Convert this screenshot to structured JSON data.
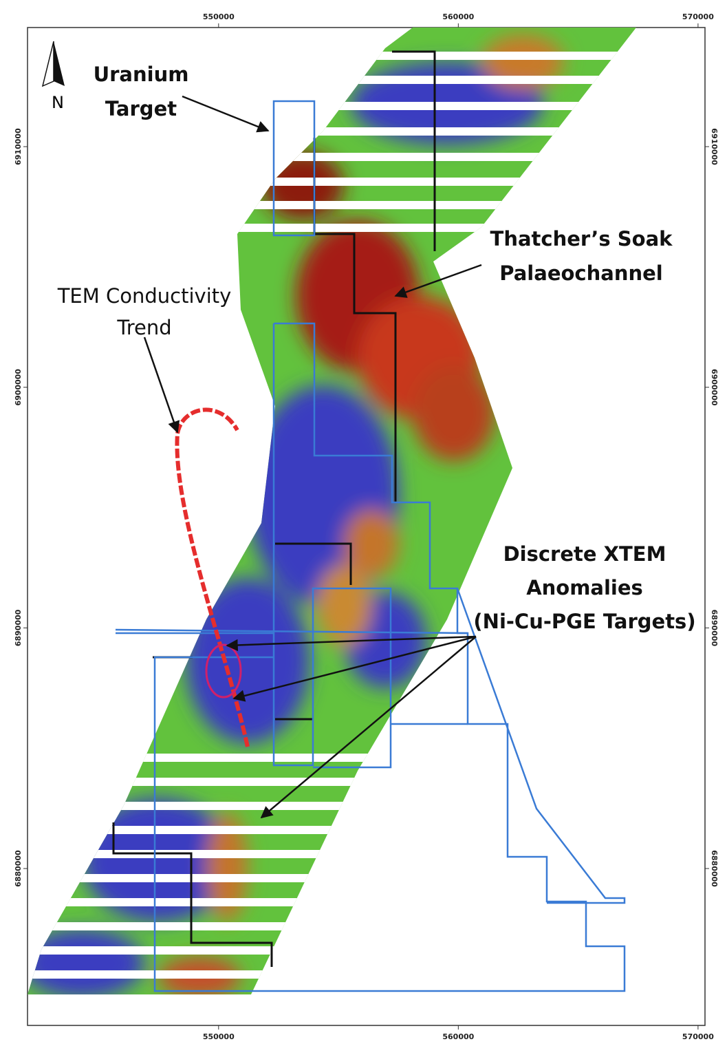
{
  "map": {
    "xlim": [
      542030,
      570290
    ],
    "ylim": [
      6873480,
      6914950
    ],
    "xticks": [
      550000,
      560000,
      570000
    ],
    "yticks": [
      6910000,
      6900000,
      6890000,
      6880000
    ],
    "north": "N",
    "labels": [
      {
        "lines": [
          "Uranium",
          "Target"
        ]
      },
      {
        "lines": [
          "Thatcher’s Soak",
          "Palaeochannel"
        ]
      },
      {
        "lines": [
          "TEM Conductivity",
          "Trend"
        ]
      },
      {
        "lines": [
          "Discrete XTEM",
          "Anomalies",
          "(Ni-Cu-PGE Targets)"
        ]
      }
    ]
  }
}
